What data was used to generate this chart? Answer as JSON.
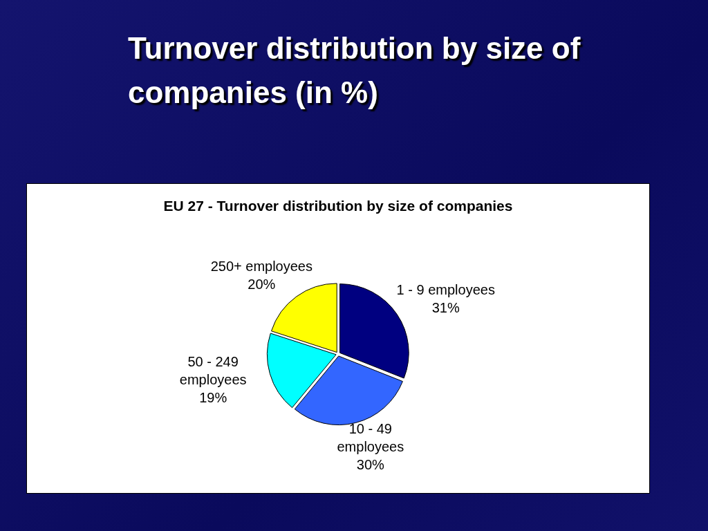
{
  "chart_data": {
    "type": "pie",
    "title": "Turnover distribution by size of companies (in %)",
    "subtitle": "EU 27 - Turnover distribution by size of companies",
    "categories": [
      "1 - 9 employees",
      "10 - 49 employees",
      "50 - 249 employees",
      "250+ employees"
    ],
    "values": [
      31,
      30,
      19,
      20
    ],
    "value_labels": [
      "31%",
      "30%",
      "19%",
      "20%"
    ],
    "colors": [
      "#000080",
      "#3366ff",
      "#00ffff",
      "#ffff00"
    ],
    "legend": false
  }
}
